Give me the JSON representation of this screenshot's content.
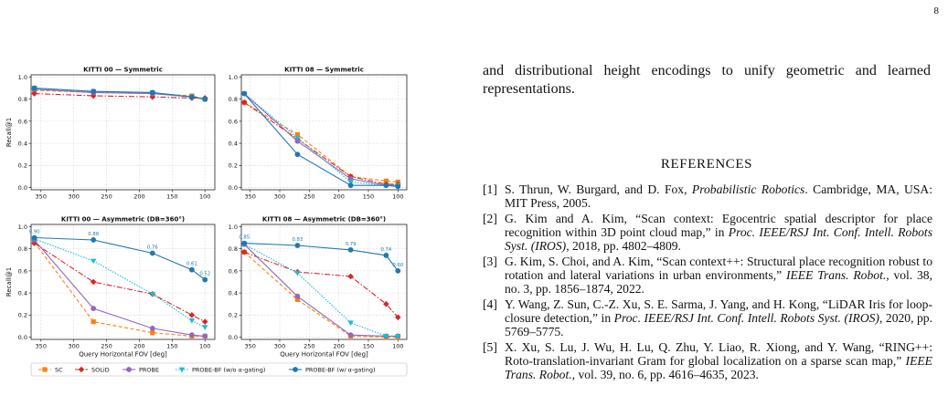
{
  "page": {
    "number": "8",
    "body_text": "and distributional height encodings to unify geometric and learned representations.",
    "references_heading": "REFERENCES",
    "references": [
      {
        "num": "[1]",
        "parts": [
          [
            "S. Thrun, W. Burgard, and D. Fox, ",
            false
          ],
          [
            "Probabilistic Robotics",
            true
          ],
          [
            ". Cambridge, MA, USA: MIT Press, 2005.",
            false
          ]
        ]
      },
      {
        "num": "[2]",
        "parts": [
          [
            "G. Kim and A. Kim, “Scan context: Egocentric spatial descriptor for place recognition within 3D point cloud map,” in ",
            false
          ],
          [
            "Proc. IEEE/RSJ Int. Conf. Intell. Robots Syst. (IROS)",
            true
          ],
          [
            ", 2018, pp. 4802–4809.",
            false
          ]
        ]
      },
      {
        "num": "[3]",
        "parts": [
          [
            "G. Kim, S. Choi, and A. Kim, “Scan context++: Structural place recognition robust to rotation and lateral variations in urban environments,” ",
            false
          ],
          [
            "IEEE Trans. Robot.",
            true
          ],
          [
            ", vol. 38, no. 3, pp. 1856–1874, 2022.",
            false
          ]
        ]
      },
      {
        "num": "[4]",
        "parts": [
          [
            "Y. Wang, Z. Sun, C.-Z. Xu, S. E. Sarma, J. Yang, and H. Kong, “LiDAR Iris for loop-closure detection,” in ",
            false
          ],
          [
            "Proc. IEEE/RSJ Int. Conf. Intell. Robots Syst. (IROS)",
            true
          ],
          [
            ", 2020, pp. 5769–5775.",
            false
          ]
        ]
      },
      {
        "num": "[5]",
        "parts": [
          [
            "X. Xu, S. Lu, J. Wu, H. Lu, Q. Zhu, Y. Liao, R. Xiong, and Y. Wang, “RING++: Roto-translation-invariant Gram for global localization on a sparse scan map,” ",
            false
          ],
          [
            "IEEE Trans. Robot.",
            true
          ],
          [
            ", vol. 39, no. 6, pp. 4616–4635, 2023.",
            false
          ]
        ]
      }
    ]
  },
  "chart_data": [
    {
      "type": "line",
      "title": "KITTI 00 — Symmetric",
      "xlabel": "",
      "ylabel": "Recall@1",
      "xlim": [
        365,
        85
      ],
      "ylim": [
        -0.02,
        1.02
      ],
      "x_ticks": [
        350,
        300,
        250,
        200,
        150,
        100
      ],
      "y_ticks": [
        0.0,
        0.2,
        0.4,
        0.6,
        0.8,
        1.0
      ],
      "grid": true,
      "x": [
        360,
        270,
        180,
        120,
        100
      ],
      "series": [
        {
          "name": "SC",
          "values": [
            0.88,
            0.86,
            0.85,
            0.83,
            0.8
          ]
        },
        {
          "name": "SOLiD",
          "values": [
            0.85,
            0.83,
            0.82,
            0.81,
            0.81
          ]
        },
        {
          "name": "PROBE",
          "values": [
            0.89,
            0.86,
            0.85,
            0.82,
            0.8
          ]
        },
        {
          "name": "PROBE-BF (w/o α-gating)",
          "values": [
            0.9,
            0.87,
            0.86,
            0.82,
            0.8
          ]
        },
        {
          "name": "PROBE-BF (w/ α-gating)",
          "values": [
            0.9,
            0.87,
            0.86,
            0.82,
            0.8
          ]
        }
      ]
    },
    {
      "type": "line",
      "title": "KITTI 08 — Symmetric",
      "xlabel": "",
      "ylabel": "",
      "xlim": [
        365,
        85
      ],
      "ylim": [
        -0.02,
        1.02
      ],
      "x_ticks": [
        350,
        300,
        250,
        200,
        150,
        100
      ],
      "y_ticks": [
        0.0,
        0.2,
        0.4,
        0.6,
        0.8,
        1.0
      ],
      "grid": true,
      "x": [
        360,
        270,
        180,
        120,
        100
      ],
      "series": [
        {
          "name": "SC",
          "values": [
            0.77,
            0.48,
            0.1,
            0.06,
            0.05
          ]
        },
        {
          "name": "SOLiD",
          "values": [
            0.77,
            0.44,
            0.1,
            0.03,
            0.03
          ]
        },
        {
          "name": "PROBE",
          "values": [
            0.85,
            0.42,
            0.08,
            0.02,
            0.02
          ]
        },
        {
          "name": "PROBE-BF (w/o α-gating)",
          "values": [
            0.85,
            0.45,
            0.05,
            0.02,
            0.02
          ]
        },
        {
          "name": "PROBE-BF (w/ α-gating)",
          "values": [
            0.85,
            0.3,
            0.02,
            0.02,
            0.01
          ]
        }
      ]
    },
    {
      "type": "line",
      "title": "KITTI 00 — Asymmetric (DB=360°)",
      "xlabel": "Query Horizontal FOV [deg]",
      "ylabel": "Recall@1",
      "xlim": [
        365,
        85
      ],
      "ylim": [
        -0.02,
        1.02
      ],
      "x_ticks": [
        350,
        300,
        250,
        200,
        150,
        100
      ],
      "y_ticks": [
        0.0,
        0.2,
        0.4,
        0.6,
        0.8,
        1.0
      ],
      "grid": true,
      "x": [
        360,
        270,
        180,
        120,
        100
      ],
      "annotations": [
        "0.90",
        "0.88",
        "0.76",
        "0.61",
        "0.52"
      ],
      "series": [
        {
          "name": "SC",
          "values": [
            0.86,
            0.14,
            0.04,
            0.01,
            0.01
          ]
        },
        {
          "name": "SOLiD",
          "values": [
            0.85,
            0.5,
            0.39,
            0.2,
            0.14
          ]
        },
        {
          "name": "PROBE",
          "values": [
            0.88,
            0.26,
            0.08,
            0.02,
            0.01
          ]
        },
        {
          "name": "PROBE-BF (w/o α-gating)",
          "values": [
            0.89,
            0.69,
            0.39,
            0.15,
            0.09
          ]
        },
        {
          "name": "PROBE-BF (w/ α-gating)",
          "values": [
            0.9,
            0.88,
            0.76,
            0.61,
            0.52
          ]
        }
      ]
    },
    {
      "type": "line",
      "title": "KITTI 08 — Asymmetric (DB=360°)",
      "xlabel": "Query Horizontal FOV [deg]",
      "ylabel": "",
      "xlim": [
        365,
        85
      ],
      "ylim": [
        -0.02,
        1.02
      ],
      "x_ticks": [
        350,
        300,
        250,
        200,
        150,
        100
      ],
      "y_ticks": [
        0.0,
        0.2,
        0.4,
        0.6,
        0.8,
        1.0
      ],
      "grid": true,
      "x": [
        360,
        270,
        180,
        120,
        100
      ],
      "annotations": [
        "0.85",
        "0.83",
        "0.79",
        "0.74",
        "0.60"
      ],
      "series": [
        {
          "name": "SC",
          "values": [
            0.77,
            0.34,
            0.01,
            0.0,
            0.0
          ]
        },
        {
          "name": "SOLiD",
          "values": [
            0.77,
            0.59,
            0.55,
            0.3,
            0.18
          ]
        },
        {
          "name": "PROBE",
          "values": [
            0.84,
            0.37,
            0.02,
            0.01,
            0.01
          ]
        },
        {
          "name": "PROBE-BF (w/o α-gating)",
          "values": [
            0.84,
            0.58,
            0.13,
            0.01,
            0.01
          ]
        },
        {
          "name": "PROBE-BF (w/ α-gating)",
          "values": [
            0.85,
            0.83,
            0.79,
            0.74,
            0.6
          ]
        }
      ]
    }
  ],
  "legend": {
    "placement": "bottom",
    "entries": [
      "SC",
      "SOLiD",
      "PROBE",
      "PROBE-BF (w/o α-gating)",
      "PROBE-BF (w/ α-gating)"
    ]
  },
  "styles": {
    "series_colors": [
      "#ff7f0e",
      "#d62728",
      "#9467bd",
      "#17becf",
      "#1f77b4"
    ],
    "series_markers": [
      "square",
      "diamond",
      "circle",
      "triangle-down",
      "circle"
    ],
    "series_dashes": [
      "dashed",
      "dashdot",
      "solid",
      "dotted",
      "solid"
    ]
  }
}
